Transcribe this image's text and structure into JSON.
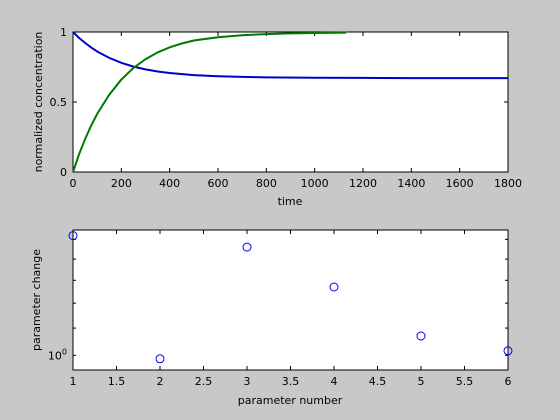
{
  "chart_data": [
    {
      "type": "line",
      "title": "",
      "xlabel": "time",
      "ylabel": "normalized concentration",
      "xlim": [
        0,
        1800
      ],
      "ylim": [
        0,
        1
      ],
      "xticks": [
        "0",
        "200",
        "400",
        "600",
        "800",
        "1000",
        "1200",
        "1400",
        "1600",
        "1800"
      ],
      "yticks": [
        "0",
        "0.5",
        "1"
      ],
      "grid": false,
      "series": [
        {
          "color": "#0000cc",
          "x": [
            0,
            25,
            50,
            75,
            100,
            150,
            200,
            250,
            300,
            350,
            400,
            500,
            600,
            700,
            800,
            1000,
            1200,
            1400,
            1600,
            1800
          ],
          "y": [
            1.0,
            0.958,
            0.922,
            0.89,
            0.861,
            0.815,
            0.78,
            0.753,
            0.733,
            0.718,
            0.707,
            0.692,
            0.684,
            0.679,
            0.676,
            0.673,
            0.672,
            0.671,
            0.671,
            0.671
          ]
        },
        {
          "color": "#007a00",
          "x": [
            0,
            25,
            50,
            75,
            100,
            150,
            200,
            250,
            300,
            350,
            400,
            450,
            500,
            600,
            700,
            800,
            900,
            1000,
            1130
          ],
          "y": [
            0.0,
            0.126,
            0.235,
            0.331,
            0.415,
            0.553,
            0.66,
            0.743,
            0.806,
            0.854,
            0.891,
            0.918,
            0.939,
            0.963,
            0.977,
            0.985,
            0.99,
            0.993,
            0.996
          ]
        }
      ]
    },
    {
      "type": "scatter",
      "title": "",
      "xlabel": "parameter number",
      "ylabel": "parameter change",
      "xlim": [
        1,
        6
      ],
      "yscale": "log",
      "ylim": [
        0.95,
        1.55
      ],
      "xticks": [
        "1",
        "1.5",
        "2",
        "2.5",
        "3",
        "3.5",
        "4",
        "4.5",
        "5",
        "5.5",
        "6"
      ],
      "yticks": [
        {
          "base": "10",
          "exp": "0"
        }
      ],
      "grid": false,
      "marker": "open-circle",
      "color": "#0000ff",
      "x": [
        1,
        2,
        3,
        4,
        5,
        6
      ],
      "y": [
        1.52,
        0.988,
        1.46,
        1.27,
        1.07,
        1.016
      ]
    }
  ]
}
